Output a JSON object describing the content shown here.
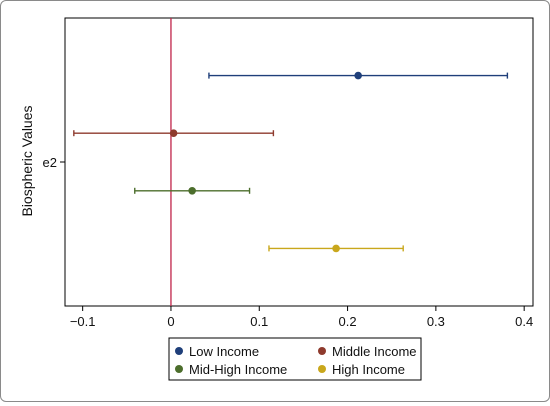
{
  "chart_data": {
    "type": "scatter",
    "subtype": "coefficient-plot-with-confidence-intervals",
    "ylabel": "Biospheric Values",
    "y_tick_labels": [
      "e2"
    ],
    "xlim": [
      -0.12,
      0.41
    ],
    "x_ticks": [
      -0.1,
      0,
      0.1,
      0.2,
      0.3,
      0.4
    ],
    "x_tick_labels": [
      "−0.1",
      "0",
      "0.1",
      "0.2",
      "0.3",
      "0.4"
    ],
    "reference_line": {
      "x": 0,
      "color": "#c0244a"
    },
    "grid": false,
    "legend_position": "bottom",
    "series": [
      {
        "name": "Low Income",
        "color": "#1f3f7a",
        "estimate": 0.212,
        "ci_low": 0.043,
        "ci_high": 0.381
      },
      {
        "name": "Middle Income",
        "color": "#8e3a2d",
        "estimate": 0.003,
        "ci_low": -0.11,
        "ci_high": 0.116
      },
      {
        "name": "Mid-High Income",
        "color": "#4c6e2c",
        "estimate": 0.024,
        "ci_low": -0.041,
        "ci_high": 0.089
      },
      {
        "name": "High Income",
        "color": "#c9a71c",
        "estimate": 0.187,
        "ci_low": 0.111,
        "ci_high": 0.263
      }
    ]
  }
}
